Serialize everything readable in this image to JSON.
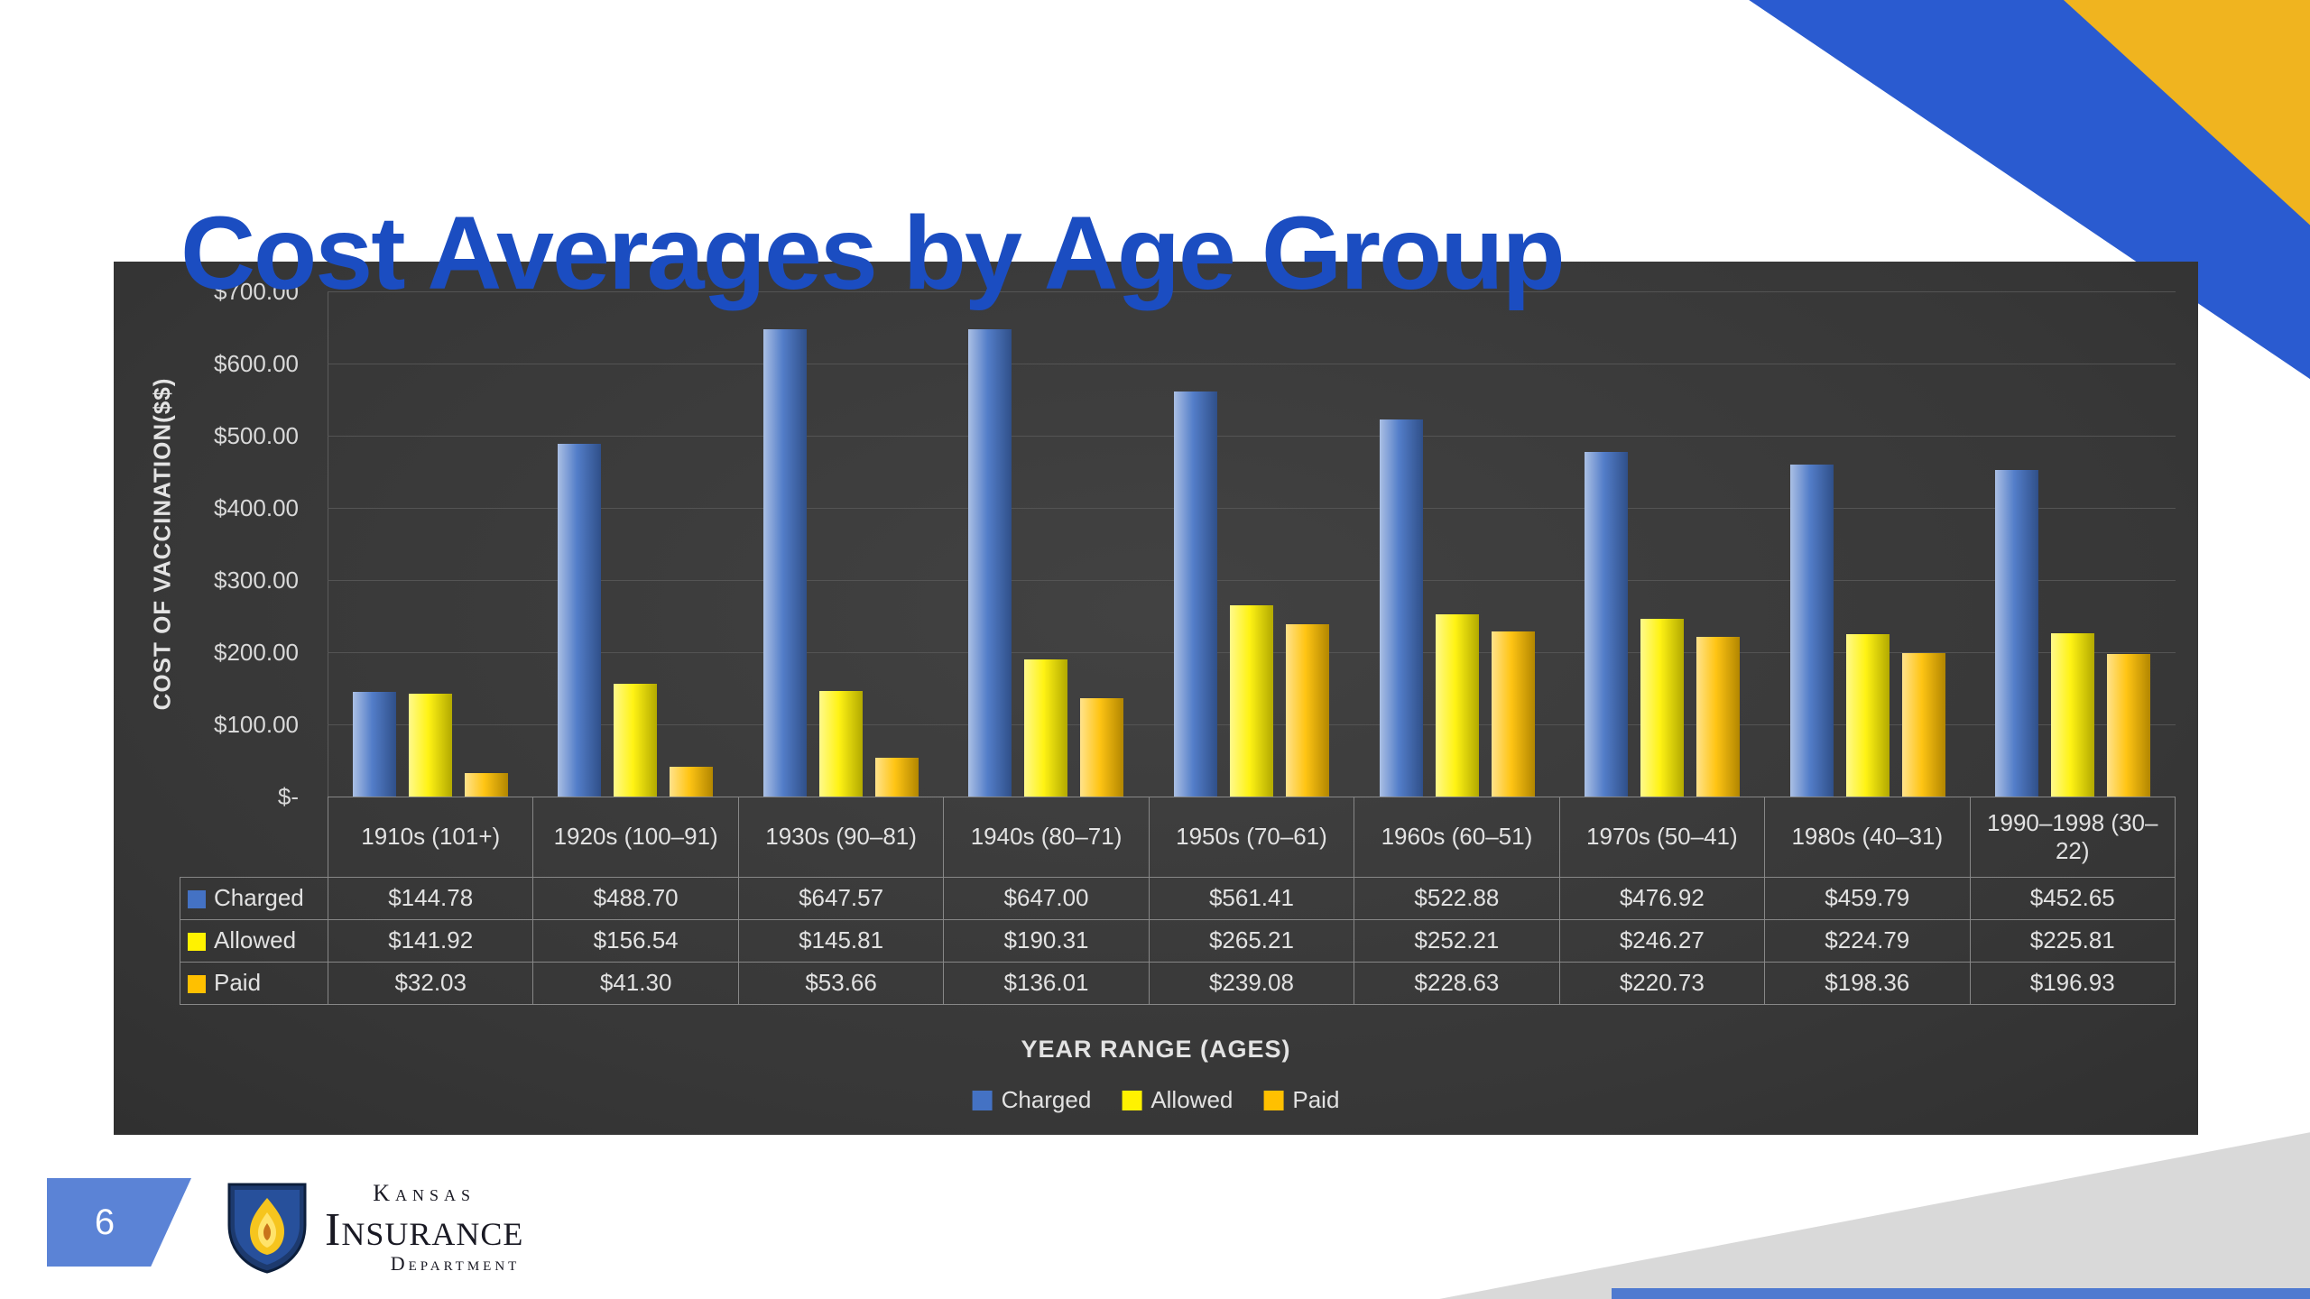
{
  "slide": {
    "title": "Cost Averages by Age Group",
    "page_number": "6"
  },
  "logo": {
    "line1": "Kansas",
    "line2": "Insurance",
    "line3": "Department"
  },
  "chart_data": {
    "type": "bar",
    "title": "Cost Averages by Age Group",
    "xlabel": "YEAR RANGE (AGES)",
    "ylabel": "COST OF VACCINATION($$)",
    "ylim": [
      0,
      700
    ],
    "ytick_labels": [
      "$-",
      "$100.00",
      "$200.00",
      "$300.00",
      "$400.00",
      "$500.00",
      "$600.00",
      "$700.00"
    ],
    "grid": true,
    "legend_position": "bottom",
    "background": "#3a3a3a",
    "categories": [
      "1910s (101+)",
      "1920s (100–91)",
      "1930s (90–81)",
      "1940s (80–71)",
      "1950s (70–61)",
      "1960s (60–51)",
      "1970s (50–41)",
      "1980s (40–31)",
      "1990–1998 (30–22)"
    ],
    "series": [
      {
        "name": "Charged",
        "color": "#4472C4",
        "values": [
          144.78,
          488.7,
          647.57,
          647.0,
          561.41,
          522.88,
          476.92,
          459.79,
          452.65
        ]
      },
      {
        "name": "Allowed",
        "color": "#FFF200",
        "values": [
          141.92,
          156.54,
          145.81,
          190.31,
          265.21,
          252.21,
          246.27,
          224.79,
          225.81
        ]
      },
      {
        "name": "Paid",
        "color": "#FFC000",
        "values": [
          32.03,
          41.3,
          53.66,
          136.01,
          239.08,
          228.63,
          220.73,
          198.36,
          196.93
        ]
      }
    ]
  }
}
